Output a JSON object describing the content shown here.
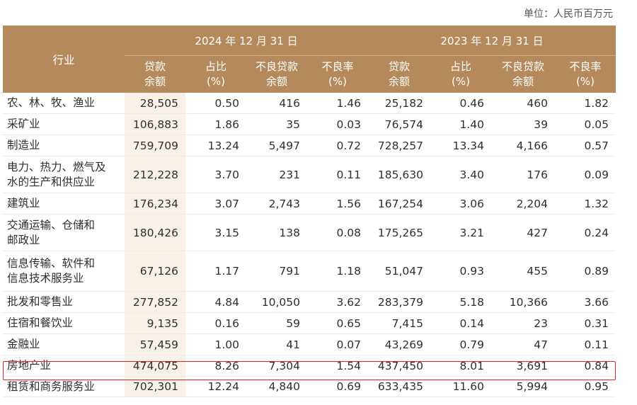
{
  "unit_label": "单位：人民币百万元",
  "header": {
    "industry": "行业",
    "period_2024": "2024 年 12 月 31 日",
    "period_2023": "2023 年 12 月 31 日",
    "columns": [
      [
        "贷款",
        "余额"
      ],
      [
        "占比",
        "(%)"
      ],
      [
        "不良贷款",
        "余额"
      ],
      [
        "不良率",
        "(%)"
      ],
      [
        "贷款",
        "余额"
      ],
      [
        "占比",
        "(%)"
      ],
      [
        "不良贷款",
        "余额"
      ],
      [
        "不良率",
        "(%)"
      ]
    ]
  },
  "rows": [
    {
      "name": [
        "农、林、牧、渔业"
      ],
      "values": [
        "28,505",
        "0.50",
        "416",
        "1.46",
        "25,182",
        "0.46",
        "460",
        "1.82"
      ]
    },
    {
      "name": [
        "采矿业"
      ],
      "values": [
        "106,883",
        "1.86",
        "35",
        "0.03",
        "76,574",
        "1.40",
        "39",
        "0.05"
      ]
    },
    {
      "name": [
        "制造业"
      ],
      "values": [
        "759,709",
        "13.24",
        "5,497",
        "0.72",
        "728,257",
        "13.34",
        "4,166",
        "0.57"
      ]
    },
    {
      "name": [
        "电力、热力、燃气及",
        "水的生产和供应业"
      ],
      "values": [
        "212,228",
        "3.70",
        "231",
        "0.11",
        "185,630",
        "3.40",
        "176",
        "0.09"
      ]
    },
    {
      "name": [
        "建筑业"
      ],
      "values": [
        "176,234",
        "3.07",
        "2,743",
        "1.56",
        "167,254",
        "3.06",
        "2,204",
        "1.32"
      ]
    },
    {
      "name": [
        "交通运输、仓储和",
        "邮政业"
      ],
      "values": [
        "180,426",
        "3.15",
        "138",
        "0.08",
        "175,265",
        "3.21",
        "427",
        "0.24"
      ]
    },
    {
      "name": [
        "信息传输、软件和",
        "信息技术服务业"
      ],
      "values": [
        "67,126",
        "1.17",
        "791",
        "1.18",
        "51,047",
        "0.93",
        "455",
        "0.89"
      ]
    },
    {
      "name": [
        "批发和零售业"
      ],
      "values": [
        "277,852",
        "4.84",
        "10,050",
        "3.62",
        "283,379",
        "5.18",
        "10,366",
        "3.66"
      ]
    },
    {
      "name": [
        "住宿和餐饮业"
      ],
      "values": [
        "9,135",
        "0.16",
        "59",
        "0.65",
        "7,415",
        "0.14",
        "23",
        "0.31"
      ]
    },
    {
      "name": [
        "金融业"
      ],
      "values": [
        "57,459",
        "1.00",
        "41",
        "0.07",
        "43,269",
        "0.79",
        "47",
        "0.11"
      ]
    },
    {
      "name": [
        "房地产业"
      ],
      "values": [
        "474,075",
        "8.26",
        "7,304",
        "1.54",
        "437,450",
        "8.01",
        "3,691",
        "0.84"
      ]
    },
    {
      "name": [
        "租赁和商务服务业"
      ],
      "values": [
        "702,301",
        "12.24",
        "4,840",
        "0.69",
        "633,435",
        "11.60",
        "5,994",
        "0.95"
      ]
    }
  ],
  "highlight_color": "#e0242a"
}
